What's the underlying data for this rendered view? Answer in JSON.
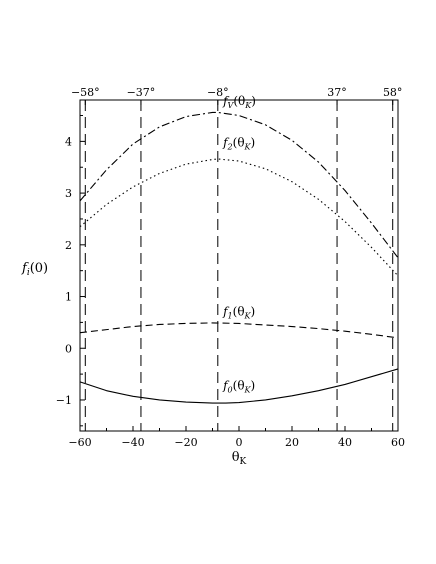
{
  "chart_data": {
    "type": "line",
    "xlabel": "θ_K",
    "ylabel": "f_i(0)",
    "xlim": [
      -60,
      60
    ],
    "ylim": [
      -1.6,
      4.8
    ],
    "x_ticks": [
      -60,
      -40,
      -20,
      0,
      20,
      40,
      60
    ],
    "y_ticks": [
      -1,
      0,
      1,
      2,
      3,
      4
    ],
    "top_ticks": [
      {
        "x": -58,
        "label": "−58°"
      },
      {
        "x": -37,
        "label": "−37°"
      },
      {
        "x": -8,
        "label": "−8°"
      },
      {
        "x": 37,
        "label": "37°"
      },
      {
        "x": 58,
        "label": "58°"
      }
    ],
    "grid": false,
    "series": [
      {
        "name": "f_V(θ_K)",
        "style": "dashdot",
        "x": [
          -60,
          -50,
          -40,
          -30,
          -20,
          -10,
          -8,
          0,
          10,
          20,
          30,
          40,
          50,
          60
        ],
        "y": [
          2.85,
          3.45,
          3.95,
          4.28,
          4.48,
          4.56,
          4.56,
          4.5,
          4.32,
          4.02,
          3.6,
          3.05,
          2.42,
          1.75
        ]
      },
      {
        "name": "f_2(θ_K)",
        "style": "dotted",
        "x": [
          -60,
          -50,
          -40,
          -30,
          -20,
          -10,
          -8,
          0,
          10,
          20,
          30,
          40,
          50,
          60
        ],
        "y": [
          2.35,
          2.78,
          3.12,
          3.38,
          3.56,
          3.65,
          3.66,
          3.62,
          3.47,
          3.22,
          2.88,
          2.45,
          1.95,
          1.4
        ]
      },
      {
        "name": "f_1(θ_K)",
        "style": "dashed",
        "x": [
          -60,
          -50,
          -40,
          -30,
          -20,
          -10,
          0,
          10,
          20,
          30,
          40,
          50,
          60
        ],
        "y": [
          0.3,
          0.36,
          0.42,
          0.46,
          0.48,
          0.49,
          0.48,
          0.45,
          0.42,
          0.38,
          0.33,
          0.27,
          0.2
        ]
      },
      {
        "name": "f_0(θ_K)",
        "style": "solid",
        "x": [
          -60,
          -50,
          -40,
          -30,
          -20,
          -10,
          -5,
          0,
          10,
          20,
          30,
          40,
          50,
          60
        ],
        "y": [
          -0.65,
          -0.82,
          -0.93,
          -1.0,
          -1.04,
          -1.06,
          -1.06,
          -1.05,
          -1.0,
          -0.92,
          -0.82,
          -0.7,
          -0.55,
          -0.4
        ]
      }
    ]
  }
}
